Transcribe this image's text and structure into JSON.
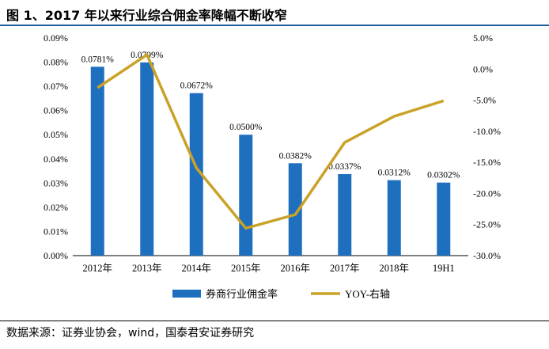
{
  "header": {
    "title": "图 1、2017 年以来行业综合佣金率降幅不断收窄"
  },
  "footer": {
    "source": "数据来源：证券业协会，wind，国泰君安证券研究"
  },
  "chart_data": {
    "type": "bar",
    "categories": [
      "2012年",
      "2013年",
      "2014年",
      "2015年",
      "2016年",
      "2017年",
      "2018年",
      "19H1"
    ],
    "series": [
      {
        "name": "券商行业佣金率",
        "type": "bar",
        "axis": "left",
        "color": "#1f6fbf",
        "values": [
          0.0781,
          0.0799,
          0.0672,
          0.05,
          0.0382,
          0.0337,
          0.0312,
          0.0302
        ],
        "labels": [
          "0.0781%",
          "0.0799%",
          "0.0672%",
          "0.0500%",
          "0.0382%",
          "0.0337%",
          "0.0312%",
          "0.0302%"
        ]
      },
      {
        "name": "YOY-右轴",
        "type": "line",
        "axis": "right",
        "color": "#c9a227",
        "values": [
          -3.0,
          2.3,
          -15.9,
          -25.6,
          -23.4,
          -11.8,
          -7.6,
          -5.1
        ]
      }
    ],
    "y_left": {
      "min": 0,
      "max": 0.09,
      "ticks": [
        "0.00%",
        "0.01%",
        "0.02%",
        "0.03%",
        "0.04%",
        "0.05%",
        "0.06%",
        "0.07%",
        "0.08%",
        "0.09%"
      ]
    },
    "y_right": {
      "min": -30,
      "max": 5,
      "ticks": [
        "5.0%",
        "0.0%",
        "-5.0%",
        "-10.0%",
        "-15.0%",
        "-20.0%",
        "-25.0%",
        "-30.0%"
      ]
    },
    "grid": false,
    "legend_position": "bottom"
  }
}
